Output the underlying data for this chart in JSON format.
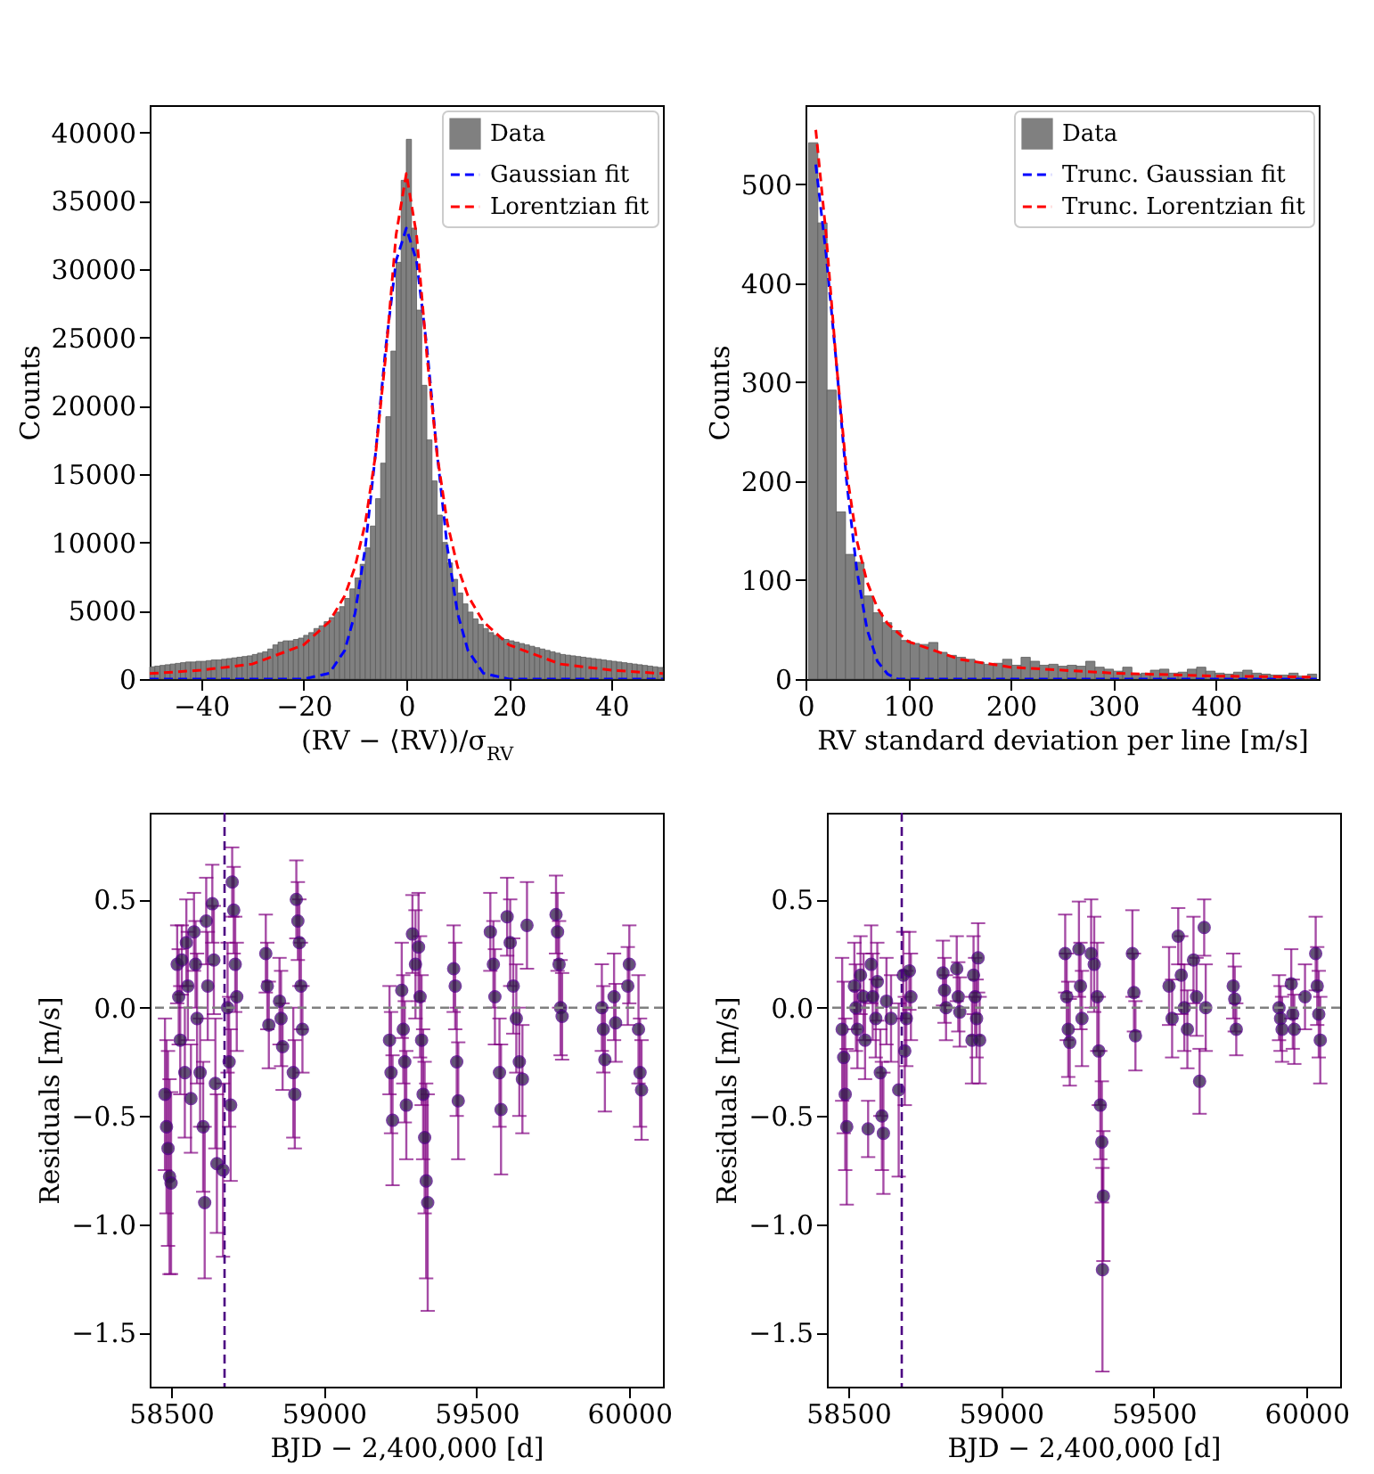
{
  "chart_data": [
    {
      "type": "histogram",
      "xlabel": "(RV − ⟨RV⟩)/σ$_{RV}$",
      "ylabel": "Counts",
      "xlim": [
        -50,
        50
      ],
      "ylim": [
        0,
        42000
      ],
      "xticks": [
        {
          "value": -40,
          "label": "−40"
        },
        {
          "value": -20,
          "label": "−20"
        },
        0,
        20,
        40
      ],
      "yticks": [
        0,
        5000,
        10000,
        15000,
        20000,
        25000,
        30000,
        35000,
        40000
      ],
      "legend": "top right",
      "bins": [
        -50,
        -49,
        -48,
        -47,
        -46,
        -45,
        -44,
        -43,
        -42,
        -41,
        -40,
        -39,
        -38,
        -37,
        -36,
        -35,
        -34,
        -33,
        -32,
        -31,
        -30,
        -29,
        -28,
        -27,
        -26,
        -25,
        -24,
        -23,
        -22,
        -21,
        -20,
        -19,
        -18,
        -17,
        -16,
        -15,
        -14,
        -13,
        -12,
        -11,
        -10,
        -9,
        -8,
        -7,
        -6,
        -5,
        -4,
        -3,
        -2,
        -1,
        0,
        1,
        2,
        3,
        4,
        5,
        6,
        7,
        8,
        9,
        10,
        11,
        12,
        13,
        14,
        15,
        16,
        17,
        18,
        19,
        20,
        21,
        22,
        23,
        24,
        25,
        26,
        27,
        28,
        29,
        30,
        31,
        32,
        33,
        34,
        35,
        36,
        37,
        38,
        39,
        40,
        41,
        42,
        43,
        44,
        45,
        46,
        47,
        48,
        49,
        50
      ],
      "series": [
        {
          "name": "Data",
          "color": "#808080",
          "values": [
            900,
            950,
            1000,
            1050,
            1100,
            1150,
            1200,
            1250,
            1250,
            1300,
            1300,
            1350,
            1400,
            1400,
            1450,
            1500,
            1550,
            1600,
            1650,
            1700,
            1800,
            1900,
            2000,
            2200,
            2500,
            2700,
            2800,
            2800,
            2900,
            3000,
            3200,
            3400,
            3700,
            3900,
            4200,
            4500,
            4900,
            5300,
            5900,
            6600,
            7400,
            8400,
            9600,
            11200,
            13200,
            15800,
            19200,
            24000,
            30500,
            36500,
            39500,
            33000,
            27000,
            21500,
            17500,
            14500,
            12000,
            10000,
            8500,
            7300,
            6300,
            5500,
            4900,
            4400,
            4000,
            3700,
            3400,
            3200,
            3000,
            2900,
            2800,
            2700,
            2600,
            2500,
            2400,
            2300,
            2200,
            2100,
            2000,
            1900,
            1800,
            1750,
            1700,
            1650,
            1600,
            1550,
            1500,
            1450,
            1400,
            1350,
            1300,
            1250,
            1200,
            1150,
            1100,
            1050,
            1000,
            950,
            900,
            850
          ]
        },
        {
          "type": "line",
          "name": "Gaussian fit",
          "color": "#0000ff",
          "line_style": "dashed",
          "x": [
            -50,
            -20,
            -15,
            -12,
            -10,
            -8,
            -6,
            -4,
            -2,
            0,
            2,
            4,
            6,
            8,
            10,
            12,
            15,
            20,
            50
          ],
          "values": [
            0,
            0,
            430,
            2100,
            4800,
            9600,
            16500,
            24300,
            30600,
            33000,
            30600,
            24300,
            16500,
            9600,
            4800,
            2100,
            430,
            0,
            0
          ]
        },
        {
          "type": "line",
          "name": "Lorentzian fit",
          "color": "#ff0000",
          "line_style": "dashed",
          "x": [
            -50,
            -40,
            -30,
            -20,
            -15,
            -12,
            -10,
            -8,
            -6,
            -4,
            -2,
            0,
            2,
            4,
            6,
            8,
            10,
            12,
            15,
            20,
            30,
            40,
            50
          ],
          "values": [
            400,
            650,
            1100,
            2500,
            4200,
            6100,
            8200,
            11400,
            16400,
            23700,
            32500,
            37000,
            32500,
            23700,
            16400,
            11400,
            8200,
            6100,
            4200,
            2500,
            1100,
            650,
            400
          ]
        }
      ]
    },
    {
      "type": "histogram",
      "xlabel": "RV standard deviation per line [m/s]",
      "ylabel": "Counts",
      "xlim": [
        0,
        500
      ],
      "ylim": [
        0,
        580
      ],
      "xticks": [
        0,
        100,
        200,
        300,
        400
      ],
      "yticks": [
        0,
        100,
        200,
        300,
        400,
        500
      ],
      "legend": "top right",
      "bins": [
        3,
        12,
        21,
        30,
        39,
        48,
        57,
        66,
        75,
        84,
        93,
        102,
        111,
        120,
        129,
        138,
        147,
        156,
        165,
        174,
        183,
        192,
        201,
        210,
        219,
        228,
        237,
        246,
        255,
        264,
        273,
        282,
        291,
        300,
        309,
        318,
        327,
        336,
        345,
        354,
        363,
        372,
        381,
        390,
        399,
        408,
        417,
        426,
        435,
        444,
        453,
        462,
        471,
        480,
        489,
        498
      ],
      "series": [
        {
          "name": "Data",
          "color": "#808080",
          "values": [
            542,
            461,
            292,
            169,
            126,
            118,
            84,
            67,
            57,
            49,
            39,
            36,
            35,
            37,
            27,
            24,
            22,
            20,
            17,
            15,
            16,
            20,
            14,
            22,
            18,
            14,
            15,
            13,
            14,
            13,
            18,
            12,
            10,
            8,
            12,
            5,
            6,
            9,
            10,
            6,
            7,
            10,
            12,
            8,
            6,
            5,
            7,
            9,
            6,
            5,
            4,
            4,
            6,
            3,
            5
          ]
        },
        {
          "type": "line",
          "name": "Trunc. Gaussian fit",
          "color": "#0000ff",
          "line_style": "dashed",
          "x": [
            10,
            20,
            30,
            40,
            50,
            60,
            70,
            80,
            90,
            100,
            498
          ],
          "values": [
            520,
            430,
            320,
            200,
            110,
            50,
            18,
            5,
            0,
            0,
            0
          ]
        },
        {
          "type": "line",
          "name": "Trunc. Lorentzian fit",
          "color": "#ff0000",
          "line_style": "dashed",
          "x": [
            10,
            20,
            30,
            40,
            50,
            60,
            70,
            80,
            100,
            150,
            200,
            300,
            400,
            495
          ],
          "values": [
            555,
            450,
            320,
            210,
            140,
            98,
            72,
            56,
            38,
            20,
            12,
            6,
            3,
            2
          ]
        }
      ]
    },
    {
      "type": "scatter",
      "xlabel": "BJD − 2,400,000 [d]",
      "ylabel": "Residuals [m/s]",
      "xlim": [
        58430,
        60110
      ],
      "ylim": [
        -1.75,
        0.9
      ],
      "xticks": [
        58500,
        59000,
        59500,
        60000
      ],
      "yticks": [
        {
          "value": -1.5,
          "label": "−1.5"
        },
        {
          "value": -1,
          "label": "−1.0"
        },
        {
          "value": -0.5,
          "label": "−0.5"
        },
        {
          "value": 0,
          "label": "0.0"
        },
        0.5
      ],
      "marker": "circle",
      "ref_lines": [
        {
          "axis": "y",
          "value": 0,
          "color": "#808080",
          "line_style": "dashed"
        },
        {
          "axis": "x",
          "value": 58675,
          "color": "#4b0082",
          "line_style": "dashed"
        }
      ],
      "series": [
        {
          "color": "#2e1a47",
          "x": [
            58480,
            58485,
            58490,
            58495,
            58500,
            58520,
            58525,
            58530,
            58535,
            58545,
            58550,
            58555,
            58565,
            58575,
            58580,
            58585,
            58595,
            58605,
            58610,
            58615,
            58620,
            58635,
            58640,
            58645,
            58650,
            58670,
            58685,
            58690,
            58695,
            58700,
            58705,
            58710,
            58715,
            58810,
            58815,
            58820,
            58855,
            58860,
            58865,
            58900,
            58905,
            58910,
            58915,
            58920,
            58925,
            58930,
            59215,
            59220,
            59225,
            59255,
            59260,
            59265,
            59270,
            59290,
            59300,
            59310,
            59315,
            59320,
            59325,
            59330,
            59335,
            59340,
            59425,
            59430,
            59435,
            59440,
            59545,
            59555,
            59560,
            59575,
            59580,
            59600,
            59610,
            59620,
            59630,
            59640,
            59650,
            59665,
            59760,
            59765,
            59770,
            59775,
            59780,
            59910,
            59915,
            59920,
            59950,
            59955,
            59995,
            60000,
            60030,
            60035,
            60040
          ],
          "values": [
            -0.4,
            -0.55,
            -0.65,
            -0.78,
            -0.81,
            0.2,
            0.05,
            -0.15,
            0.22,
            -0.3,
            0.3,
            0.1,
            -0.42,
            0.35,
            0.2,
            -0.05,
            -0.3,
            -0.55,
            -0.9,
            0.4,
            0.1,
            0.48,
            0.22,
            -0.35,
            -0.72,
            -0.75,
            0,
            -0.25,
            -0.45,
            0.58,
            0.45,
            0.2,
            0.05,
            0.25,
            0.1,
            -0.08,
            0.03,
            -0.05,
            -0.18,
            -0.3,
            -0.4,
            0.5,
            0.4,
            0.3,
            0.1,
            -0.1,
            -0.15,
            -0.3,
            -0.52,
            0.08,
            -0.1,
            -0.25,
            -0.45,
            0.34,
            0.2,
            0.28,
            0.05,
            -0.15,
            -0.4,
            -0.6,
            -0.8,
            -0.9,
            0.18,
            0.1,
            -0.25,
            -0.43,
            0.35,
            0.2,
            0.05,
            -0.3,
            -0.47,
            0.42,
            0.3,
            0.1,
            -0.05,
            -0.25,
            -0.33,
            0.38,
            0.43,
            0.35,
            0.2,
            0,
            -0.04,
            0,
            -0.1,
            -0.24,
            0.05,
            -0.07,
            0.1,
            0.2,
            -0.1,
            -0.3,
            -0.38
          ],
          "errors": [
            0.35,
            0.4,
            0.45,
            0.45,
            0.42,
            0.18,
            0.22,
            0.25,
            0.16,
            0.3,
            0.2,
            0.25,
            0.25,
            0.18,
            0.2,
            0.3,
            0.25,
            0.3,
            0.35,
            0.2,
            0.25,
            0.18,
            0.25,
            0.3,
            0.32,
            0.4,
            0.3,
            0.3,
            0.35,
            0.16,
            0.2,
            0.22,
            0.25,
            0.18,
            0.2,
            0.2,
            0.2,
            0.22,
            0.2,
            0.3,
            0.25,
            0.18,
            0.18,
            0.2,
            0.2,
            0.2,
            0.25,
            0.28,
            0.3,
            0.22,
            0.25,
            0.28,
            0.25,
            0.18,
            0.25,
            0.25,
            0.28,
            0.3,
            0.3,
            0.35,
            0.45,
            0.5,
            0.2,
            0.2,
            0.25,
            0.27,
            0.18,
            0.2,
            0.22,
            0.25,
            0.3,
            0.18,
            0.2,
            0.22,
            0.25,
            0.25,
            0.25,
            0.2,
            0.18,
            0.18,
            0.2,
            0.22,
            0.2,
            0.2,
            0.2,
            0.24,
            0.2,
            0.18,
            0.18,
            0.18,
            0.25,
            0.25,
            0.23
          ]
        }
      ]
    },
    {
      "type": "scatter",
      "xlabel": "BJD − 2,400,000 [d]",
      "ylabel": "Residuals [m/s]",
      "xlim": [
        58430,
        60110
      ],
      "ylim": [
        -1.75,
        0.9
      ],
      "xticks": [
        58500,
        59000,
        59500,
        60000
      ],
      "yticks": [
        {
          "value": -1.5,
          "label": "−1.5"
        },
        {
          "value": -1,
          "label": "−1.0"
        },
        {
          "value": -0.5,
          "label": "−0.5"
        },
        {
          "value": 0,
          "label": "0.0"
        },
        0.5
      ],
      "marker": "circle",
      "ref_lines": [
        {
          "axis": "y",
          "value": 0,
          "color": "#808080",
          "line_style": "dashed"
        },
        {
          "axis": "x",
          "value": 58675,
          "color": "#4b0082",
          "line_style": "dashed"
        }
      ],
      "series": [
        {
          "color": "#2e1a47",
          "x": [
            58480,
            58485,
            58490,
            58495,
            58520,
            58525,
            58530,
            58540,
            58550,
            58555,
            58565,
            58575,
            58580,
            58590,
            58595,
            58605,
            58610,
            58615,
            58625,
            58640,
            58665,
            58680,
            58685,
            58690,
            58700,
            58705,
            58810,
            58815,
            58820,
            58855,
            58860,
            58865,
            58905,
            58910,
            58915,
            58920,
            58925,
            58930,
            59210,
            59215,
            59220,
            59225,
            59255,
            59260,
            59265,
            59295,
            59305,
            59315,
            59320,
            59325,
            59330,
            59335,
            59332,
            59430,
            59435,
            59440,
            59550,
            59560,
            59580,
            59590,
            59600,
            59610,
            59630,
            59640,
            59650,
            59665,
            59670,
            59760,
            59765,
            59770,
            59910,
            59915,
            59920,
            59950,
            59955,
            59960,
            59995,
            60030,
            60035,
            60040,
            60045
          ],
          "values": [
            -0.1,
            -0.23,
            -0.4,
            -0.55,
            0.1,
            0,
            -0.1,
            0.15,
            0.05,
            -0.15,
            -0.56,
            0.2,
            0.05,
            -0.05,
            0.12,
            -0.3,
            -0.5,
            -0.58,
            0.03,
            -0.05,
            -0.38,
            0.15,
            -0.2,
            -0.05,
            0.17,
            0.05,
            0.16,
            0.08,
            0,
            0.18,
            0.05,
            -0.02,
            -0.15,
            0.15,
            0.05,
            -0.05,
            0.23,
            -0.15,
            0.25,
            0.05,
            -0.1,
            -0.16,
            0.27,
            0.1,
            -0.05,
            0.25,
            0.2,
            0.05,
            -0.2,
            -0.45,
            -0.62,
            -0.87,
            -1.21,
            0.25,
            0.07,
            -0.13,
            0.1,
            -0.05,
            0.33,
            0.15,
            0,
            -0.1,
            0.22,
            0.05,
            -0.34,
            0.37,
            0,
            0.1,
            0.04,
            -0.1,
            0,
            -0.05,
            -0.1,
            0.11,
            -0.03,
            -0.1,
            0.05,
            0.25,
            0.1,
            -0.03,
            -0.15
          ],
          "errors": [
            0.33,
            0.35,
            0.35,
            0.36,
            0.2,
            0.2,
            0.18,
            0.18,
            0.2,
            0.18,
            0.13,
            0.18,
            0.2,
            0.18,
            0.18,
            0.2,
            0.25,
            0.28,
            0.2,
            0.2,
            0.4,
            0.2,
            0.25,
            0.22,
            0.18,
            0.2,
            0.15,
            0.15,
            0.15,
            0.15,
            0.16,
            0.16,
            0.2,
            0.18,
            0.18,
            0.18,
            0.16,
            0.2,
            0.18,
            0.2,
            0.22,
            0.2,
            0.22,
            0.2,
            0.22,
            0.25,
            0.22,
            0.25,
            0.25,
            0.25,
            0.28,
            0.3,
            0.47,
            0.2,
            0.18,
            0.16,
            0.18,
            0.18,
            0.13,
            0.18,
            0.2,
            0.18,
            0.2,
            0.18,
            0.15,
            0.13,
            0.2,
            0.15,
            0.15,
            0.12,
            0.15,
            0.15,
            0.15,
            0.16,
            0.16,
            0.16,
            0.15,
            0.17,
            0.18,
            0.2,
            0.2
          ]
        }
      ]
    }
  ]
}
